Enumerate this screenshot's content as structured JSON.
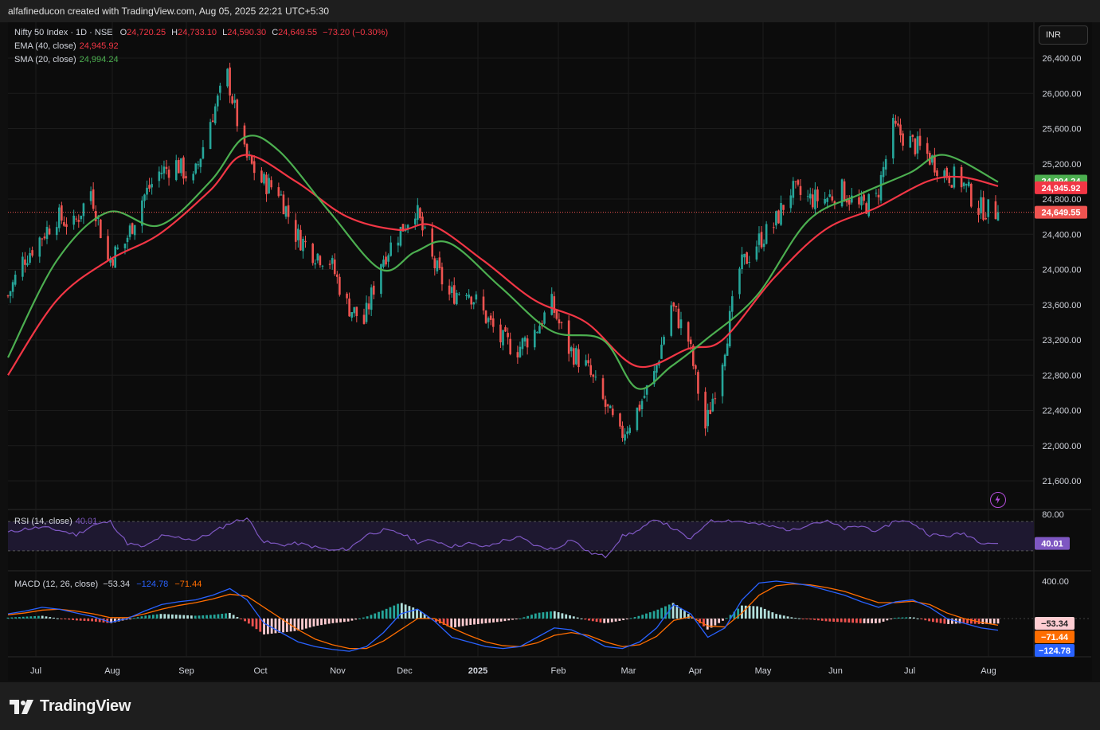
{
  "header": {
    "credit": "alfafineducon created with TradingView.com, Aug 05, 2025 22:21 UTC+5:30"
  },
  "footer": {
    "brand": "TradingView"
  },
  "currency": "INR",
  "colors": {
    "up": "#26a69a",
    "down": "#ef5350",
    "ema": "#f23645",
    "sma": "#4caf50",
    "rsi": "#7e57c2",
    "macd": "#2962ff",
    "signal": "#ff6d00"
  },
  "main_legend": {
    "symbol": "Nifty 50 Index · 1D · NSE",
    "o_label": "O",
    "o": "24,720.25",
    "h_label": "H",
    "h": "24,733.10",
    "l_label": "L",
    "l": "24,590.30",
    "c_label": "C",
    "c": "24,649.55",
    "change": "−73.20 (−0.30%)",
    "ema_label": "EMA (40, close)",
    "ema_value": "24,945.92",
    "sma_label": "SMA (20, close)",
    "sma_value": "24,994.24"
  },
  "rsi_legend": {
    "label": "RSI (14, close)",
    "value": "40.01"
  },
  "macd_legend": {
    "label": "MACD (12, 26, close)",
    "hist": "−53.34",
    "macd": "−124.78",
    "signal": "−71.44"
  },
  "chart_data": [
    {
      "type": "candlestick",
      "title": "Nifty 50 Index · 1D · NSE",
      "ylim": [
        21400,
        26600
      ],
      "y_ticks": [
        "26,400.00",
        "26,000.00",
        "25,600.00",
        "25,200.00",
        "24,800.00",
        "24,400.00",
        "24,000.00",
        "23,600.00",
        "23,200.00",
        "22,800.00",
        "22,400.00",
        "22,000.00",
        "21,600.00"
      ],
      "x_ticks": [
        "Jul",
        "Aug",
        "Sep",
        "Oct",
        "Nov",
        "Dec",
        "2025",
        "Feb",
        "Mar",
        "Apr",
        "May",
        "Jun",
        "Jul",
        "Aug"
      ],
      "price_markers": [
        {
          "name": "SMA (20, close)",
          "value": "24,994.24"
        },
        {
          "name": "EMA (40, close)",
          "value": "24,945.92"
        },
        {
          "name": "close",
          "value": "24,649.55"
        }
      ],
      "close_path": [
        [
          "2024-06-25",
          23700
        ],
        [
          "2024-07-01",
          24100
        ],
        [
          "2024-07-08",
          24350
        ],
        [
          "2024-07-15",
          24600
        ],
        [
          "2024-07-22",
          24500
        ],
        [
          "2024-07-29",
          24900
        ],
        [
          "2024-08-05",
          24100
        ],
        [
          "2024-08-12",
          24300
        ],
        [
          "2024-08-19",
          24800
        ],
        [
          "2024-08-26",
          25100
        ],
        [
          "2024-09-02",
          25200
        ],
        [
          "2024-09-09",
          25000
        ],
        [
          "2024-09-16",
          25700
        ],
        [
          "2024-09-23",
          26200
        ],
        [
          "2024-09-30",
          25300
        ],
        [
          "2024-10-07",
          25000
        ],
        [
          "2024-10-14",
          24900
        ],
        [
          "2024-10-21",
          24400
        ],
        [
          "2024-10-28",
          24200
        ],
        [
          "2024-11-04",
          24100
        ],
        [
          "2024-11-11",
          23600
        ],
        [
          "2024-11-18",
          23400
        ],
        [
          "2024-11-25",
          24100
        ],
        [
          "2024-12-02",
          24400
        ],
        [
          "2024-12-09",
          24700
        ],
        [
          "2024-12-16",
          24100
        ],
        [
          "2024-12-23",
          23700
        ],
        [
          "2024-12-30",
          23800
        ],
        [
          "2025-01-06",
          23500
        ],
        [
          "2025-01-13",
          23200
        ],
        [
          "2025-01-20",
          23100
        ],
        [
          "2025-01-27",
          23300
        ],
        [
          "2025-02-03",
          23600
        ],
        [
          "2025-02-10",
          23100
        ],
        [
          "2025-02-17",
          22900
        ],
        [
          "2025-02-24",
          22500
        ],
        [
          "2025-03-03",
          22100
        ],
        [
          "2025-03-10",
          22400
        ],
        [
          "2025-03-17",
          22800
        ],
        [
          "2025-03-24",
          23600
        ],
        [
          "2025-03-31",
          23200
        ],
        [
          "2025-04-07",
          22200
        ],
        [
          "2025-04-14",
          23000
        ],
        [
          "2025-04-21",
          24000
        ],
        [
          "2025-04-28",
          24300
        ],
        [
          "2025-05-05",
          24500
        ],
        [
          "2025-05-12",
          24900
        ],
        [
          "2025-05-19",
          24800
        ],
        [
          "2025-05-26",
          24800
        ],
        [
          "2025-06-02",
          24900
        ],
        [
          "2025-06-09",
          24700
        ],
        [
          "2025-06-16",
          24800
        ],
        [
          "2025-06-23",
          25600
        ],
        [
          "2025-06-30",
          25450
        ],
        [
          "2025-07-07",
          25300
        ],
        [
          "2025-07-14",
          25100
        ],
        [
          "2025-07-21",
          25000
        ],
        [
          "2025-07-28",
          24700
        ],
        [
          "2025-08-05",
          24649.55
        ]
      ],
      "sma_20_path": [
        [
          "2024-06-25",
          23000
        ],
        [
          "2024-07-15",
          24100
        ],
        [
          "2024-08-05",
          24650
        ],
        [
          "2024-08-26",
          24500
        ],
        [
          "2024-09-16",
          25000
        ],
        [
          "2024-09-30",
          25500
        ],
        [
          "2024-10-14",
          25350
        ],
        [
          "2024-11-04",
          24650
        ],
        [
          "2024-11-25",
          24000
        ],
        [
          "2024-12-09",
          24200
        ],
        [
          "2024-12-23",
          24300
        ],
        [
          "2025-01-13",
          23800
        ],
        [
          "2025-02-03",
          23300
        ],
        [
          "2025-02-24",
          23200
        ],
        [
          "2025-03-10",
          22650
        ],
        [
          "2025-03-24",
          22900
        ],
        [
          "2025-04-07",
          23200
        ],
        [
          "2025-04-28",
          23700
        ],
        [
          "2025-05-19",
          24550
        ],
        [
          "2025-06-09",
          24850
        ],
        [
          "2025-06-30",
          25100
        ],
        [
          "2025-07-14",
          25300
        ],
        [
          "2025-08-05",
          24994.24
        ]
      ],
      "ema_40_path": [
        [
          "2024-06-25",
          22800
        ],
        [
          "2024-07-15",
          23650
        ],
        [
          "2024-08-05",
          24100
        ],
        [
          "2024-08-26",
          24400
        ],
        [
          "2024-09-16",
          24900
        ],
        [
          "2024-09-30",
          25300
        ],
        [
          "2024-10-21",
          25000
        ],
        [
          "2024-11-11",
          24600
        ],
        [
          "2024-12-02",
          24450
        ],
        [
          "2024-12-16",
          24500
        ],
        [
          "2025-01-06",
          24100
        ],
        [
          "2025-01-27",
          23650
        ],
        [
          "2025-02-17",
          23400
        ],
        [
          "2025-03-10",
          22900
        ],
        [
          "2025-03-31",
          23100
        ],
        [
          "2025-04-14",
          23200
        ],
        [
          "2025-05-05",
          23900
        ],
        [
          "2025-05-26",
          24450
        ],
        [
          "2025-06-16",
          24700
        ],
        [
          "2025-07-07",
          25000
        ],
        [
          "2025-07-21",
          25050
        ],
        [
          "2025-08-05",
          24945.92
        ]
      ]
    },
    {
      "type": "line",
      "title": "RSI (14, close)",
      "ylim": [
        20,
        90
      ],
      "y_ticks": [
        "80.00"
      ],
      "last_value": "40.01",
      "values": [
        55,
        60,
        62,
        58,
        52,
        65,
        70,
        40,
        35,
        50,
        48,
        45,
        55,
        68,
        75,
        42,
        38,
        40,
        35,
        30,
        33,
        52,
        58,
        54,
        42,
        44,
        36,
        40,
        35,
        44,
        48,
        36,
        32,
        46,
        28,
        22,
        50,
        58,
        74,
        60,
        45,
        70,
        72,
        70,
        66,
        62,
        58,
        68,
        70,
        60,
        64,
        56,
        72,
        68,
        52,
        50,
        54,
        42,
        40.01
      ]
    },
    {
      "type": "bar+line",
      "title": "MACD (12, 26, close)",
      "ylim": [
        -500,
        500
      ],
      "y_ticks": [
        "400.00"
      ],
      "histogram_last": "−53.34",
      "macd_last": "−124.78",
      "signal_last": "−71.44",
      "macd": [
        50,
        80,
        120,
        100,
        60,
        20,
        -40,
        0,
        80,
        150,
        180,
        200,
        250,
        320,
        200,
        -50,
        -150,
        -250,
        -300,
        -330,
        -350,
        -300,
        -150,
        50,
        100,
        -30,
        -200,
        -250,
        -300,
        -320,
        -300,
        -200,
        -100,
        -120,
        -200,
        -300,
        -320,
        -250,
        -100,
        150,
        50,
        -200,
        -100,
        200,
        380,
        400,
        380,
        350,
        300,
        250,
        180,
        120,
        180,
        200,
        120,
        0,
        -50,
        -100,
        -124.78
      ],
      "signal": [
        40,
        60,
        90,
        100,
        80,
        50,
        10,
        10,
        50,
        100,
        140,
        170,
        210,
        260,
        240,
        120,
        0,
        -120,
        -220,
        -280,
        -320,
        -320,
        -240,
        -120,
        0,
        0,
        -100,
        -180,
        -250,
        -290,
        -300,
        -260,
        -180,
        -150,
        -180,
        -250,
        -300,
        -280,
        -190,
        -20,
        20,
        -80,
        -90,
        60,
        250,
        350,
        370,
        360,
        330,
        290,
        230,
        170,
        170,
        185,
        150,
        60,
        0,
        -40,
        -71.44
      ]
    }
  ]
}
